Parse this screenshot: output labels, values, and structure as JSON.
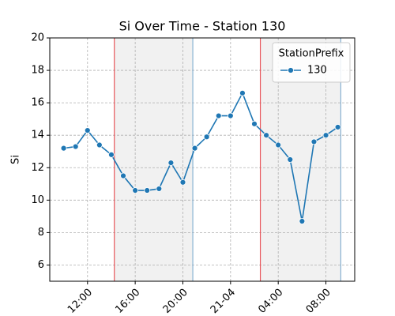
{
  "chart_data": {
    "type": "line",
    "title": "Si  Over Time - Station 130",
    "ylabel": "Si",
    "x": [
      "20-04 10:00",
      "20-04 11:00",
      "20-04 12:00",
      "20-04 13:00",
      "20-04 14:00",
      "20-04 15:00",
      "20-04 16:00",
      "20-04 17:00",
      "20-04 18:00",
      "20-04 19:00",
      "20-04 20:00",
      "20-04 21:00",
      "20-04 22:00",
      "20-04 23:00",
      "21-04 00:00",
      "21-04 01:00",
      "21-04 02:00",
      "21-04 03:00",
      "21-04 04:00",
      "21-04 05:00",
      "21-04 06:00",
      "21-04 07:00",
      "21-04 08:00",
      "21-04 09:00"
    ],
    "series": [
      {
        "name": "130",
        "color": "#1f77b4",
        "values": [
          13.2,
          13.3,
          14.3,
          13.4,
          12.8,
          11.5,
          10.6,
          10.6,
          10.7,
          12.3,
          11.1,
          13.2,
          13.9,
          15.2,
          15.2,
          16.6,
          14.7,
          14.0,
          13.4,
          12.5,
          8.7,
          13.6,
          14.0,
          14.5
        ]
      }
    ],
    "legend_title": "StationPrefix",
    "legend": "upper right",
    "xlim": [
      "20-04 08:50",
      "21-04 10:25"
    ],
    "xticks": [
      {
        "value": "20-04 12:00",
        "label": "12:00"
      },
      {
        "value": "20-04 16:00",
        "label": "16:00"
      },
      {
        "value": "20-04 20:00",
        "label": "20:00"
      },
      {
        "value": "21-04 00:00",
        "label": "21-04"
      },
      {
        "value": "21-04 04:00",
        "label": "04:00"
      },
      {
        "value": "21-04 08:00",
        "label": "08:00"
      }
    ],
    "ylim": [
      5,
      20
    ],
    "yticks": [
      6,
      8,
      10,
      12,
      14,
      16,
      18,
      20
    ],
    "grid": true,
    "spans": [
      {
        "start": "20-04 14:15",
        "end": "20-04 20:50"
      },
      {
        "start": "21-04 02:30",
        "end": "21-04 09:15"
      }
    ]
  }
}
